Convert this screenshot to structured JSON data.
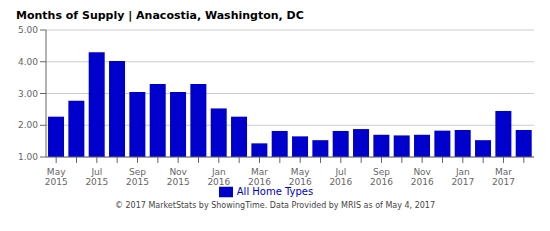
{
  "chart_data": {
    "type": "bar",
    "title": "Months of Supply | Anacostia, Washington, DC",
    "categories": [
      "May\n2015",
      null,
      "Jul\n2015",
      null,
      "Sep\n2015",
      null,
      "Nov\n2015",
      null,
      "Jan\n2016",
      null,
      "Mar\n2016",
      null,
      "May\n2016",
      null,
      "Jul\n2016",
      null,
      "Sep\n2016",
      null,
      "Nov\n2016",
      null,
      "Jan\n2017",
      null,
      "Mar\n2017",
      null
    ],
    "series": [
      {
        "name": "All Home Types",
        "color": "#0000cc",
        "values": [
          2.27,
          2.77,
          4.3,
          4.02,
          3.05,
          3.3,
          3.05,
          3.3,
          2.53,
          2.27,
          1.43,
          1.82,
          1.65,
          1.53,
          1.82,
          1.88,
          1.7,
          1.68,
          1.7,
          1.83,
          1.85,
          1.53,
          2.45,
          1.85
        ]
      }
    ],
    "ylim": [
      1.0,
      5.0
    ],
    "yticks": [
      {
        "value": 1,
        "label": "1.00"
      },
      {
        "value": 2,
        "label": "2.00"
      },
      {
        "value": 3,
        "label": "3.00"
      },
      {
        "value": 4,
        "label": "4.00"
      },
      {
        "value": 5,
        "label": "5.00"
      }
    ],
    "grid": true,
    "legend": "bottom",
    "annotations": [
      "© 2017 MarketStats by ShowingTime. Data Provided by MRIS as of May 4, 2017"
    ]
  }
}
